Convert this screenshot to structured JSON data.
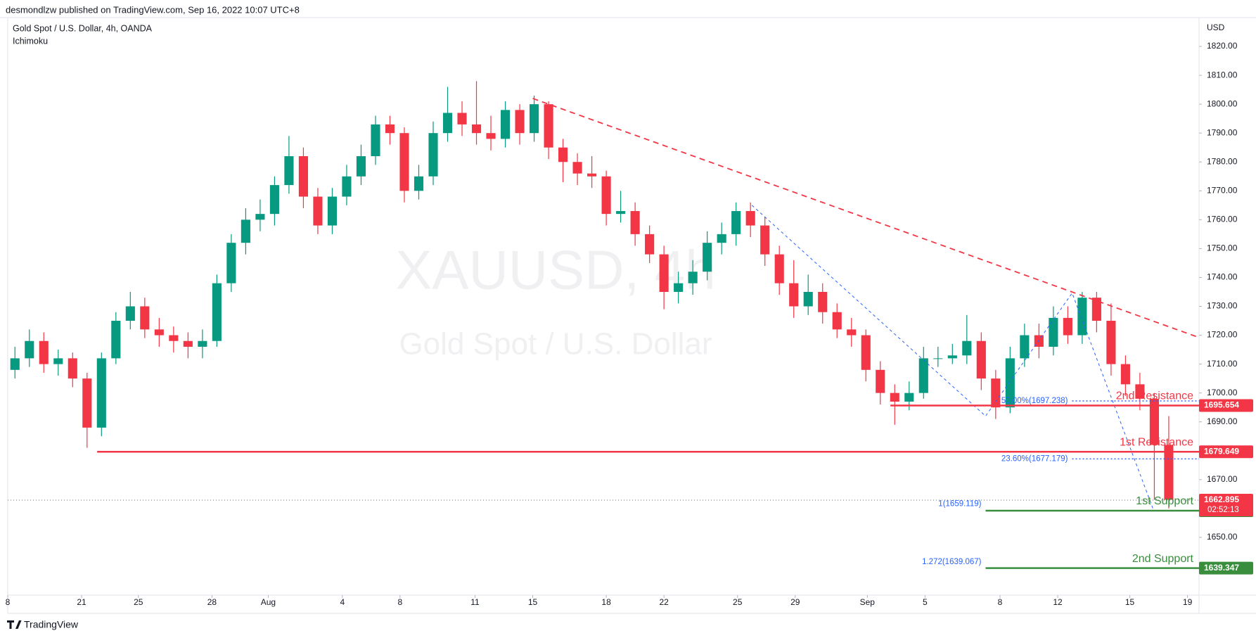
{
  "chart_data": {
    "type": "candlestick",
    "publisher": "desmondlzw published on TradingView.com, Sep 16, 2022 10:07 UTC+8",
    "title": "Gold Spot / U.S. Dollar, 4h, OANDA",
    "indicator": "Ichimoku",
    "watermark": "XAUUSD, 4h",
    "watermark_subtitle": "Gold Spot / U.S. Dollar",
    "y_axis_label": "USD",
    "brand": "TradingView",
    "up_color": "#089981",
    "down_color": "#f23645",
    "xlim": [
      0,
      41.3
    ],
    "xticks": [
      {
        "value": 0,
        "label": "8"
      },
      {
        "value": 2.56,
        "label": "21"
      },
      {
        "value": 4.53,
        "label": "25"
      },
      {
        "value": 7.08,
        "label": "28"
      },
      {
        "value": 9.03,
        "label": "Aug"
      },
      {
        "value": 11.6,
        "label": "4"
      },
      {
        "value": 13.6,
        "label": "8"
      },
      {
        "value": 16.2,
        "label": "11"
      },
      {
        "value": 18.2,
        "label": "15"
      },
      {
        "value": 20.75,
        "label": "18"
      },
      {
        "value": 22.75,
        "label": "22"
      },
      {
        "value": 25.3,
        "label": "25"
      },
      {
        "value": 27.3,
        "label": "29"
      },
      {
        "value": 29.8,
        "label": "Sep"
      },
      {
        "value": 31.8,
        "label": "5"
      },
      {
        "value": 34.4,
        "label": "8"
      },
      {
        "value": 36.4,
        "label": "12"
      },
      {
        "value": 38.9,
        "label": "15"
      },
      {
        "value": 40.9,
        "label": "19"
      }
    ],
    "ylim": [
      1630,
      1830
    ],
    "yticks": [
      {
        "value": 1650,
        "label": "1650.00"
      },
      {
        "value": 1660,
        "label": "1660.00"
      },
      {
        "value": 1670,
        "label": "1670.00"
      },
      {
        "value": 1680,
        "label": "1680.00"
      },
      {
        "value": 1690,
        "label": "1690.00"
      },
      {
        "value": 1700,
        "label": "1700.00"
      },
      {
        "value": 1710,
        "label": "1710.00"
      },
      {
        "value": 1720,
        "label": "1720.00"
      },
      {
        "value": 1730,
        "label": "1730.00"
      },
      {
        "value": 1740,
        "label": "1740.00"
      },
      {
        "value": 1750,
        "label": "1750.00"
      },
      {
        "value": 1760,
        "label": "1760.00"
      },
      {
        "value": 1770,
        "label": "1770.00"
      },
      {
        "value": 1780,
        "label": "1780.00"
      },
      {
        "value": 1790,
        "label": "1790.00"
      },
      {
        "value": 1800,
        "label": "1800.00"
      },
      {
        "value": 1810,
        "label": "1810.00"
      },
      {
        "value": 1820,
        "label": "1820.00"
      }
    ],
    "candles": {
      "x": [
        0.25,
        0.75,
        1.25,
        1.75,
        2.25,
        2.75,
        3.25,
        3.75,
        4.25,
        4.75,
        5.25,
        5.75,
        6.25,
        6.75,
        7.25,
        7.75,
        8.25,
        8.75,
        9.25,
        9.75,
        10.25,
        10.75,
        11.25,
        11.75,
        12.25,
        12.75,
        13.25,
        13.75,
        14.25,
        14.75,
        15.25,
        15.75,
        16.25,
        16.75,
        17.25,
        17.75,
        18.25,
        18.75,
        19.25,
        19.75,
        20.25,
        20.75,
        21.25,
        21.75,
        22.25,
        22.75,
        23.25,
        23.75,
        24.25,
        24.75,
        25.25,
        25.75,
        26.25,
        26.75,
        27.25,
        27.75,
        28.25,
        28.75,
        29.25,
        29.75,
        30.25,
        30.75,
        31.25,
        31.75,
        32.25,
        32.75,
        33.25,
        33.75,
        34.25,
        34.75,
        35.25,
        35.75,
        36.25,
        36.75,
        37.25,
        37.75,
        38.25,
        38.75,
        39.25,
        39.75,
        40.25
      ],
      "open": [
        1708,
        1712,
        1718,
        1710,
        1712,
        1705,
        1688,
        1712,
        1725,
        1730,
        1722,
        1720,
        1718,
        1716,
        1718,
        1738,
        1752,
        1760,
        1762,
        1772,
        1782,
        1768,
        1758,
        1768,
        1775,
        1782,
        1793,
        1790,
        1770,
        1775,
        1790,
        1797,
        1793,
        1790,
        1788,
        1798,
        1790,
        1800,
        1785,
        1780,
        1776,
        1775,
        1762,
        1763,
        1755,
        1748,
        1735,
        1738,
        1742,
        1752,
        1755,
        1763,
        1758,
        1748,
        1738,
        1730,
        1735,
        1728,
        1722,
        1720,
        1708,
        1700,
        1697,
        1700,
        1712,
        1712,
        1713,
        1718,
        1705,
        1695,
        1712,
        1720,
        1716,
        1726,
        1720,
        1733,
        1725,
        1710,
        1703,
        1698,
        1682
      ],
      "high": [
        1716,
        1722,
        1721,
        1715,
        1714,
        1707,
        1714,
        1728,
        1735,
        1733,
        1726,
        1723,
        1721,
        1722,
        1741,
        1755,
        1764,
        1767,
        1775,
        1789,
        1785,
        1771,
        1771,
        1779,
        1786,
        1796,
        1796,
        1792,
        1779,
        1794,
        1806,
        1801,
        1808,
        1796,
        1801,
        1800,
        1803,
        1801,
        1788,
        1783,
        1782,
        1777,
        1770,
        1766,
        1758,
        1751,
        1742,
        1746,
        1756,
        1759,
        1766,
        1766,
        1761,
        1751,
        1746,
        1741,
        1738,
        1731,
        1726,
        1722,
        1711,
        1703,
        1704,
        1716,
        1716,
        1717,
        1727,
        1721,
        1708,
        1716,
        1724,
        1724,
        1730,
        1730,
        1735,
        1735,
        1731,
        1713,
        1707,
        1700,
        1692
      ],
      "low": [
        1705,
        1709,
        1707,
        1706,
        1702,
        1681,
        1685,
        1710,
        1722,
        1719,
        1716,
        1714,
        1712,
        1712,
        1716,
        1735,
        1748,
        1756,
        1758,
        1769,
        1764,
        1755,
        1755,
        1765,
        1772,
        1779,
        1786,
        1766,
        1767,
        1772,
        1787,
        1789,
        1786,
        1784,
        1785,
        1786,
        1787,
        1781,
        1773,
        1772,
        1771,
        1758,
        1759,
        1751,
        1745,
        1729,
        1731,
        1734,
        1739,
        1748,
        1751,
        1754,
        1744,
        1734,
        1726,
        1727,
        1724,
        1719,
        1716,
        1704,
        1696,
        1689,
        1694,
        1698,
        1709,
        1710,
        1710,
        1701,
        1691,
        1693,
        1709,
        1712,
        1713,
        1717,
        1717,
        1721,
        1706,
        1699,
        1694,
        1663,
        1660
      ],
      "close": [
        1712,
        1718,
        1710,
        1712,
        1705,
        1688,
        1712,
        1725,
        1730,
        1722,
        1720,
        1718,
        1716,
        1718,
        1738,
        1752,
        1760,
        1762,
        1772,
        1782,
        1768,
        1758,
        1768,
        1775,
        1782,
        1793,
        1790,
        1770,
        1775,
        1790,
        1797,
        1793,
        1790,
        1788,
        1798,
        1790,
        1800,
        1785,
        1780,
        1776,
        1775,
        1762,
        1763,
        1755,
        1748,
        1735,
        1738,
        1742,
        1752,
        1755,
        1763,
        1758,
        1748,
        1738,
        1730,
        1735,
        1728,
        1722,
        1720,
        1708,
        1700,
        1697,
        1700,
        1712,
        1712,
        1713,
        1718,
        1705,
        1695,
        1712,
        1720,
        1716,
        1726,
        1720,
        1733,
        1725,
        1710,
        1703,
        1698,
        1682,
        1663
      ]
    },
    "trendline": {
      "color": "#f23645",
      "x": [
        18.2,
        41.3
      ],
      "y": [
        1802,
        1719.2
      ]
    },
    "zigzag": {
      "color": "#2962ff",
      "x": [
        25.8,
        33.9,
        36.9,
        39.7
      ],
      "y": [
        1765,
        1692,
        1734.6,
        1660
      ]
    },
    "levels": [
      {
        "label": "2nd Resistance",
        "value": 1695.654,
        "color": "#f23645",
        "x0": 30.6
      },
      {
        "label": "1st Resistance",
        "value": 1679.649,
        "color": "#f23645",
        "x0": 3.1
      },
      {
        "label": "1st Support",
        "value": 1659.247,
        "color": "#388e3c",
        "x0": 33.9
      },
      {
        "label": "2nd Support",
        "value": 1639.347,
        "color": "#388e3c",
        "x0": 33.9
      }
    ],
    "fib": [
      {
        "label": "50.00%(1697.238)",
        "value": 1697.238,
        "x0": 36.9,
        "line": true
      },
      {
        "label": "23.60%(1677.179)",
        "value": 1677.179,
        "x0": 36.9,
        "line": true
      },
      {
        "label": "1(1659.119)",
        "value": 1659.119,
        "x0": 33.9,
        "line": false
      },
      {
        "label": "1.272(1639.067)",
        "value": 1639.067,
        "x0": 33.9,
        "line": false
      }
    ],
    "fib_color": "#2962ff",
    "last": {
      "value": 1662.895,
      "countdown": "02:52:13",
      "color": "#f23645"
    }
  }
}
